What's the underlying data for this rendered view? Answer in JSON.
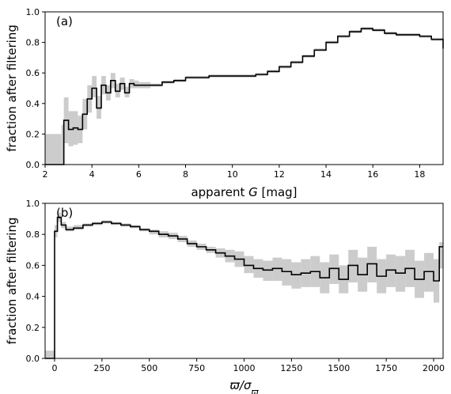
{
  "chart_data": [
    {
      "type": "line",
      "style": "step",
      "panel_label": "(a)",
      "xlabel": "apparent G [mag]",
      "xlabel_parts": {
        "prefix": "apparent ",
        "italic": "G",
        "suffix": " [mag]"
      },
      "ylabel": "fraction after filtering",
      "xlim": [
        2,
        19
      ],
      "ylim": [
        0.0,
        1.0
      ],
      "xticks": [
        2,
        4,
        6,
        8,
        10,
        12,
        14,
        16,
        18
      ],
      "yticks": [
        "0.0",
        "0.2",
        "0.4",
        "0.6",
        "0.8",
        "1.0"
      ],
      "grid": false,
      "legend": "none",
      "series": [
        {
          "x": [
            2.0,
            2.7,
            2.8,
            3.0,
            3.2,
            3.4,
            3.6,
            3.8,
            4.0,
            4.2,
            4.4,
            4.6,
            4.8,
            5.0,
            5.2,
            5.4,
            5.6,
            5.8,
            6.0,
            6.5,
            7.0,
            7.5,
            8.0,
            8.5,
            9.0,
            9.5,
            10.0,
            10.5,
            11.0,
            11.5,
            12.0,
            12.5,
            13.0,
            13.5,
            14.0,
            14.5,
            15.0,
            15.5,
            16.0,
            16.5,
            17.0,
            17.5,
            18.0,
            18.5,
            19.0
          ],
          "y": [
            0.0,
            0.0,
            0.29,
            0.23,
            0.24,
            0.23,
            0.33,
            0.43,
            0.5,
            0.37,
            0.52,
            0.47,
            0.55,
            0.48,
            0.53,
            0.47,
            0.53,
            0.52,
            0.52,
            0.52,
            0.54,
            0.55,
            0.57,
            0.57,
            0.58,
            0.58,
            0.58,
            0.58,
            0.59,
            0.61,
            0.64,
            0.67,
            0.71,
            0.75,
            0.8,
            0.84,
            0.87,
            0.89,
            0.88,
            0.86,
            0.85,
            0.85,
            0.84,
            0.82,
            0.76
          ],
          "y_low": [
            0.0,
            0.0,
            0.14,
            0.12,
            0.13,
            0.14,
            0.23,
            0.34,
            0.44,
            0.3,
            0.46,
            0.42,
            0.5,
            0.44,
            0.49,
            0.44,
            0.5,
            0.5,
            0.5,
            0.51,
            0.53,
            0.54,
            0.56,
            0.56,
            0.57,
            0.57,
            0.57,
            0.57,
            0.58,
            0.6,
            0.63,
            0.66,
            0.7,
            0.74,
            0.79,
            0.83,
            0.86,
            0.88,
            0.87,
            0.85,
            0.84,
            0.84,
            0.83,
            0.81,
            0.75
          ],
          "y_high": [
            0.2,
            0.26,
            0.44,
            0.35,
            0.35,
            0.32,
            0.43,
            0.52,
            0.58,
            0.45,
            0.58,
            0.52,
            0.6,
            0.53,
            0.57,
            0.51,
            0.56,
            0.55,
            0.54,
            0.53,
            0.55,
            0.56,
            0.58,
            0.58,
            0.59,
            0.59,
            0.59,
            0.59,
            0.6,
            0.62,
            0.65,
            0.68,
            0.72,
            0.76,
            0.81,
            0.85,
            0.88,
            0.9,
            0.89,
            0.87,
            0.86,
            0.86,
            0.85,
            0.83,
            0.77
          ]
        }
      ]
    },
    {
      "type": "line",
      "style": "step",
      "panel_label": "(b)",
      "xlabel": "ϖ/σϖ",
      "xlabel_parts": {
        "main": "ϖ/σ",
        "sub": "ϖ"
      },
      "ylabel": "fraction after filtering",
      "xlim": [
        -50,
        2050
      ],
      "ylim": [
        0.0,
        1.0
      ],
      "xticks": [
        0,
        250,
        500,
        750,
        1000,
        1250,
        1500,
        1750,
        2000
      ],
      "yticks": [
        "0.0",
        "0.2",
        "0.4",
        "0.6",
        "0.8",
        "1.0"
      ],
      "grid": false,
      "legend": "none",
      "series": [
        {
          "x": [
            -50,
            -20,
            0,
            15,
            35,
            60,
            100,
            150,
            200,
            250,
            300,
            350,
            400,
            450,
            500,
            550,
            600,
            650,
            700,
            750,
            800,
            850,
            900,
            950,
            1000,
            1050,
            1100,
            1150,
            1200,
            1250,
            1300,
            1350,
            1400,
            1450,
            1500,
            1550,
            1600,
            1650,
            1700,
            1750,
            1800,
            1850,
            1900,
            1950,
            2000,
            2030,
            2050
          ],
          "y": [
            0.0,
            0.0,
            0.82,
            0.91,
            0.86,
            0.83,
            0.84,
            0.86,
            0.87,
            0.88,
            0.87,
            0.86,
            0.85,
            0.83,
            0.82,
            0.8,
            0.79,
            0.77,
            0.74,
            0.72,
            0.7,
            0.68,
            0.66,
            0.64,
            0.6,
            0.58,
            0.57,
            0.58,
            0.56,
            0.54,
            0.55,
            0.56,
            0.52,
            0.58,
            0.51,
            0.6,
            0.54,
            0.61,
            0.53,
            0.57,
            0.55,
            0.58,
            0.51,
            0.56,
            0.5,
            0.72,
            0.72
          ],
          "y_low": [
            0.0,
            0.0,
            0.78,
            0.88,
            0.84,
            0.82,
            0.83,
            0.85,
            0.86,
            0.87,
            0.86,
            0.85,
            0.84,
            0.82,
            0.8,
            0.78,
            0.77,
            0.75,
            0.72,
            0.7,
            0.68,
            0.65,
            0.62,
            0.59,
            0.55,
            0.52,
            0.5,
            0.5,
            0.47,
            0.45,
            0.46,
            0.46,
            0.42,
            0.48,
            0.42,
            0.49,
            0.43,
            0.49,
            0.42,
            0.46,
            0.43,
            0.46,
            0.39,
            0.43,
            0.36,
            0.58,
            0.58
          ],
          "y_high": [
            0.05,
            0.05,
            0.86,
            0.94,
            0.88,
            0.85,
            0.86,
            0.87,
            0.88,
            0.89,
            0.88,
            0.87,
            0.86,
            0.84,
            0.83,
            0.82,
            0.81,
            0.79,
            0.76,
            0.74,
            0.72,
            0.71,
            0.7,
            0.69,
            0.66,
            0.64,
            0.63,
            0.65,
            0.64,
            0.62,
            0.64,
            0.66,
            0.62,
            0.67,
            0.6,
            0.7,
            0.65,
            0.72,
            0.64,
            0.67,
            0.66,
            0.7,
            0.63,
            0.68,
            0.64,
            0.75,
            0.75
          ]
        }
      ]
    }
  ]
}
